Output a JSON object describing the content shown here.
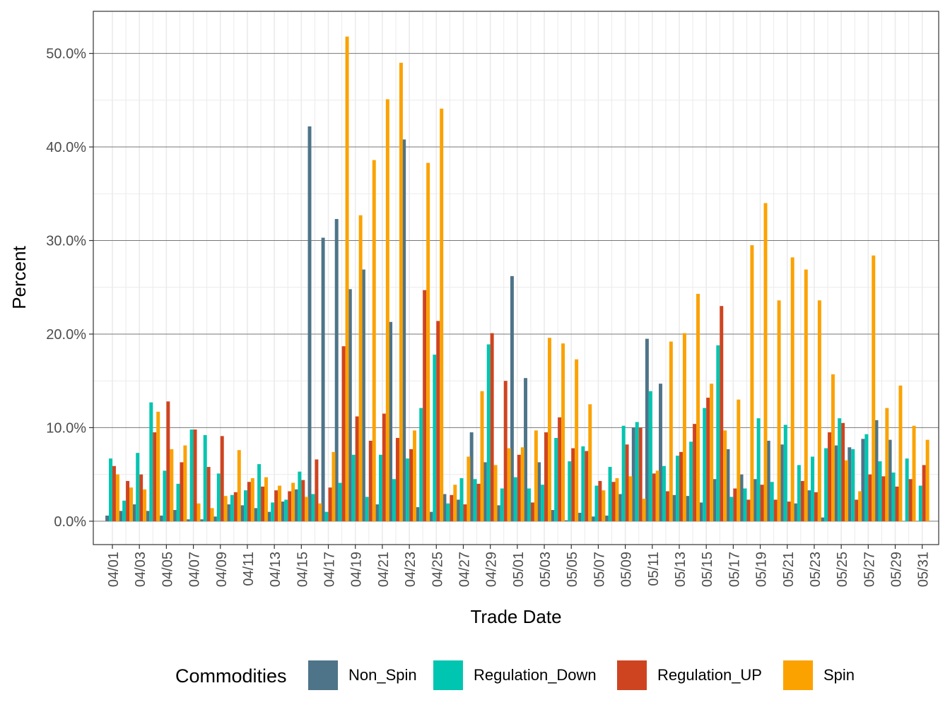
{
  "chart_data": {
    "type": "bar",
    "xlabel": "Trade Date",
    "ylabel": "Percent",
    "ylim": [
      -2.5,
      54.5
    ],
    "y_ticks": [
      0,
      10,
      20,
      30,
      40,
      50
    ],
    "y_tick_labels": [
      "0.0%",
      "10.0%",
      "20.0%",
      "30.0%",
      "40.0%",
      "50.0%"
    ],
    "grid": true,
    "legend": {
      "title": "Commodities",
      "position": "bottom"
    },
    "categories": [
      "04/01",
      "04/02",
      "04/03",
      "04/04",
      "04/05",
      "04/06",
      "04/07",
      "04/08",
      "04/09",
      "04/10",
      "04/11",
      "04/12",
      "04/13",
      "04/14",
      "04/15",
      "04/16",
      "04/17",
      "04/18",
      "04/19",
      "04/20",
      "04/21",
      "04/22",
      "04/23",
      "04/24",
      "04/25",
      "04/26",
      "04/27",
      "04/28",
      "04/29",
      "04/30",
      "05/01",
      "05/02",
      "05/03",
      "05/04",
      "05/05",
      "05/06",
      "05/07",
      "05/08",
      "05/09",
      "05/10",
      "05/11",
      "05/12",
      "05/13",
      "05/14",
      "05/15",
      "05/16",
      "05/17",
      "05/18",
      "05/19",
      "05/20",
      "05/21",
      "05/22",
      "05/23",
      "05/24",
      "05/25",
      "05/26",
      "05/27",
      "05/28",
      "05/29",
      "05/30",
      "05/31"
    ],
    "x_tick_labels": [
      "04/01",
      "04/03",
      "04/05",
      "04/07",
      "04/09",
      "04/11",
      "04/13",
      "04/15",
      "04/17",
      "04/19",
      "04/21",
      "04/23",
      "04/25",
      "04/27",
      "04/29",
      "05/01",
      "05/03",
      "05/05",
      "05/07",
      "05/09",
      "05/11",
      "05/13",
      "05/15",
      "05/17",
      "05/19",
      "05/21",
      "05/23",
      "05/25",
      "05/27",
      "05/29",
      "05/31"
    ],
    "series": [
      {
        "name": "Non_Spin",
        "color": "#4e7489",
        "values": [
          0.6,
          1.1,
          1.8,
          1.1,
          0.6,
          1.2,
          0.2,
          0.2,
          0.5,
          1.8,
          1.7,
          1.4,
          1.0,
          2.1,
          3.4,
          42.2,
          30.3,
          32.3,
          24.8,
          26.9,
          1.8,
          21.3,
          40.8,
          1.5,
          1.0,
          2.9,
          2.3,
          9.5,
          6.3,
          1.7,
          26.2,
          15.3,
          6.3,
          1.2,
          0.1,
          0.9,
          0.5,
          0.6,
          2.9,
          10.0,
          19.5,
          14.7,
          2.8,
          2.7,
          2.0,
          4.5,
          7.7,
          5.0,
          4.5,
          8.6,
          8.2,
          1.9,
          3.3,
          0.4,
          8.1,
          7.9,
          8.8,
          10.8,
          8.7,
          0,
          0
        ]
      },
      {
        "name": "Regulation_Down",
        "color": "#00c5b0",
        "values": [
          6.7,
          2.2,
          7.3,
          12.7,
          5.4,
          4.0,
          9.8,
          9.2,
          5.1,
          2.8,
          3.3,
          6.1,
          2.0,
          2.3,
          5.3,
          2.9,
          1.0,
          4.1,
          7.1,
          2.6,
          7.1,
          4.5,
          6.7,
          12.1,
          17.8,
          1.9,
          4.6,
          4.5,
          18.9,
          3.5,
          4.7,
          3.5,
          3.9,
          8.9,
          6.4,
          8.0,
          3.8,
          5.8,
          10.2,
          10.6,
          13.9,
          5.9,
          7.0,
          8.5,
          12.1,
          18.8,
          2.6,
          3.5,
          11.0,
          4.2,
          10.3,
          6.0,
          6.9,
          7.8,
          11.0,
          7.7,
          9.3,
          6.4,
          5.2,
          6.7,
          3.8
        ]
      },
      {
        "name": "Regulation_UP",
        "color": "#cf4420",
        "values": [
          5.9,
          4.3,
          5.0,
          9.5,
          12.8,
          6.3,
          9.8,
          5.8,
          9.1,
          3.1,
          4.2,
          3.7,
          3.3,
          3.2,
          4.4,
          6.6,
          3.6,
          18.7,
          11.2,
          8.6,
          11.5,
          8.9,
          7.7,
          24.7,
          21.4,
          2.8,
          1.8,
          4.0,
          20.1,
          15.0,
          7.1,
          2.0,
          9.5,
          11.1,
          7.8,
          7.5,
          4.3,
          4.2,
          8.2,
          10.0,
          5.1,
          3.2,
          7.4,
          10.4,
          13.2,
          23.0,
          3.5,
          2.3,
          3.9,
          2.3,
          2.1,
          4.3,
          3.1,
          9.5,
          10.5,
          2.3,
          5.0,
          4.8,
          3.7,
          4.5,
          6.0
        ]
      },
      {
        "name": "Spin",
        "color": "#fba200",
        "values": [
          5.0,
          3.6,
          3.4,
          11.7,
          7.7,
          8.1,
          1.9,
          1.4,
          2.7,
          7.6,
          4.6,
          4.7,
          3.8,
          4.1,
          2.6,
          1.9,
          7.4,
          51.8,
          32.7,
          38.6,
          45.1,
          49.0,
          9.7,
          38.3,
          44.1,
          3.9,
          6.9,
          13.9,
          6.0,
          7.8,
          7.9,
          9.7,
          19.6,
          19.0,
          17.3,
          12.5,
          3.3,
          4.6,
          4.8,
          2.4,
          5.4,
          19.2,
          20.1,
          24.3,
          14.7,
          9.7,
          13.0,
          29.5,
          34.0,
          23.6,
          28.2,
          26.9,
          23.6,
          15.7,
          6.5,
          3.2,
          28.4,
          12.1,
          14.5,
          10.2,
          8.7
        ]
      }
    ]
  }
}
